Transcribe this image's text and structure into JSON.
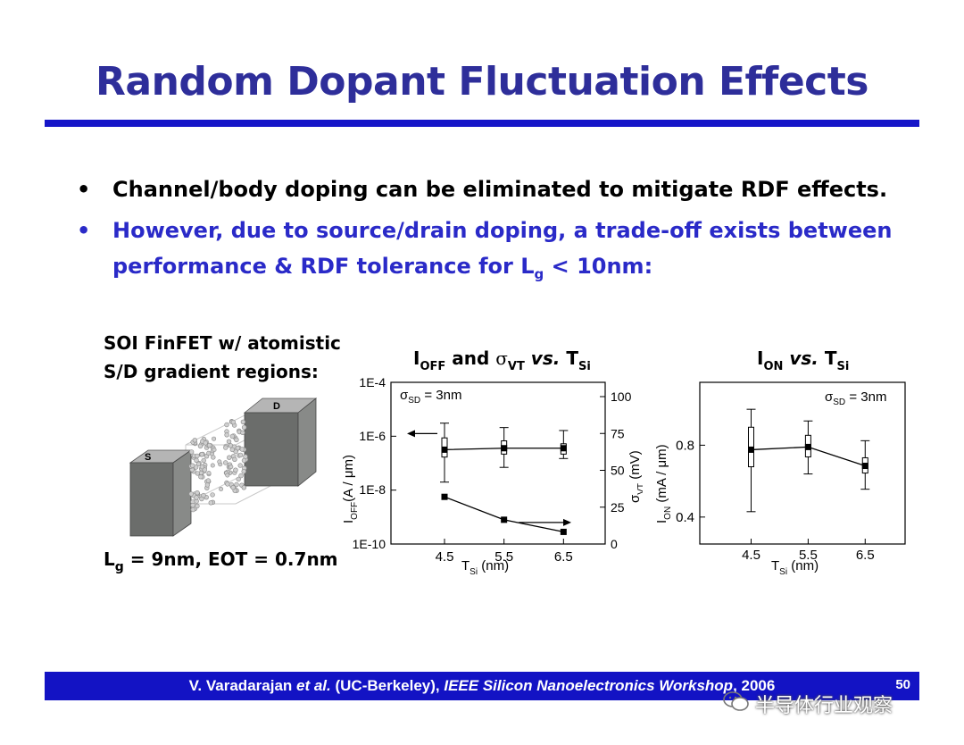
{
  "slide": {
    "title": "Random Dopant Fluctuation Effects",
    "bullet_char": "•",
    "bullets": [
      {
        "text": "Channel/body doping can be eliminated to mitigate RDF effects."
      },
      {
        "line1": "However, due to source/drain doping, a trade-off exists between",
        "line2_pre": "performance & RDF tolerance for L",
        "line2_sub": "g",
        "line2_post": " < 10nm:"
      }
    ],
    "device": {
      "caption_line1": "SOI FinFET w/ atomistic",
      "caption_line2": "S/D gradient regions:",
      "source_label": "S",
      "drain_label": "D",
      "lg_pre": "L",
      "lg_sub": "g",
      "lg_post": " = 9nm, EOT = 0.7nm"
    },
    "footer": {
      "author": "V. Varadarajan",
      "etal": " et al.",
      "affil": " (UC-Berkeley), ",
      "venue": "IEEE Silicon Nanoelectronics Workshop",
      "year": ", 2006",
      "page": "50"
    },
    "watermark": "半导体行业观察",
    "colors": {
      "title": "#2e2e9a",
      "rule": "#1515c8",
      "bullet2": "#2a2ac8",
      "footer": "#1313c4"
    }
  },
  "chart_data": [
    {
      "type": "line",
      "title_parts": {
        "a": "I",
        "a_sub": "OFF",
        "b": " and ",
        "sigma": "σ",
        "sigma_sub": "VT",
        "vs": " vs.",
        "c": " T",
        "c_sub": "Si"
      },
      "xlabel": {
        "main": "T",
        "sub": "Si",
        "unit": " (nm)"
      },
      "ylabel_left": {
        "main": "I",
        "sub": "OFF",
        "unit": "(A / μm)"
      },
      "ylabel_right": {
        "main": "σ",
        "sub": "VT",
        "unit": " (mV)"
      },
      "annotation": {
        "main": "σ",
        "sub": "SD",
        "rest": " = 3nm"
      },
      "x_ticks": [
        "4.5",
        "5.5",
        "6.5"
      ],
      "y_ticks_left": [
        "1E-4",
        "1E-6",
        "1E-8",
        "1E-10"
      ],
      "y_ticks_right": [
        "100",
        "75",
        "50",
        "25",
        "0"
      ],
      "x_range": [
        3.6,
        7.2
      ],
      "y_left_log_range": [
        -10,
        -4
      ],
      "y_right_range": [
        0,
        100
      ],
      "series": [
        {
          "axis": "right",
          "style": "boxplot",
          "x": [
            4.5,
            5.5,
            6.5
          ],
          "median": [
            64,
            65,
            65
          ],
          "q1": [
            59,
            61,
            61
          ],
          "q3": [
            72,
            70,
            68
          ],
          "min": [
            42,
            52,
            58
          ],
          "max": [
            82,
            79,
            77
          ]
        },
        {
          "axis": "left",
          "style": "line-marker",
          "x": [
            4.5,
            5.5,
            6.5
          ],
          "y_log10": [
            -8.25,
            -9.1,
            -9.55
          ]
        }
      ],
      "arrows": [
        {
          "target_axis": "left",
          "direction": "left"
        },
        {
          "target_axis": "right",
          "direction": "right"
        }
      ]
    },
    {
      "type": "line",
      "title_parts": {
        "a": "I",
        "a_sub": "ON",
        "vs": " vs.",
        "c": " T",
        "c_sub": "Si"
      },
      "xlabel": {
        "main": "T",
        "sub": "Si",
        "unit": " (nm)"
      },
      "ylabel": {
        "main": "I",
        "sub": "ON",
        "unit": " (mA / μm)"
      },
      "annotation": {
        "main": "σ",
        "sub": "SD",
        "rest": " = 3nm"
      },
      "x_ticks": [
        "4.5",
        "5.5",
        "6.5"
      ],
      "y_ticks": [
        "0.8",
        "0.4"
      ],
      "x_range": [
        3.6,
        7.2
      ],
      "y_range": [
        0.25,
        1.15
      ],
      "series": [
        {
          "style": "boxplot",
          "x": [
            4.5,
            5.5,
            6.5
          ],
          "median": [
            0.775,
            0.79,
            0.685
          ],
          "q1": [
            0.68,
            0.735,
            0.645
          ],
          "q3": [
            0.9,
            0.855,
            0.73
          ],
          "min": [
            0.43,
            0.64,
            0.555
          ],
          "max": [
            1.0,
            0.935,
            0.825
          ]
        }
      ]
    }
  ]
}
